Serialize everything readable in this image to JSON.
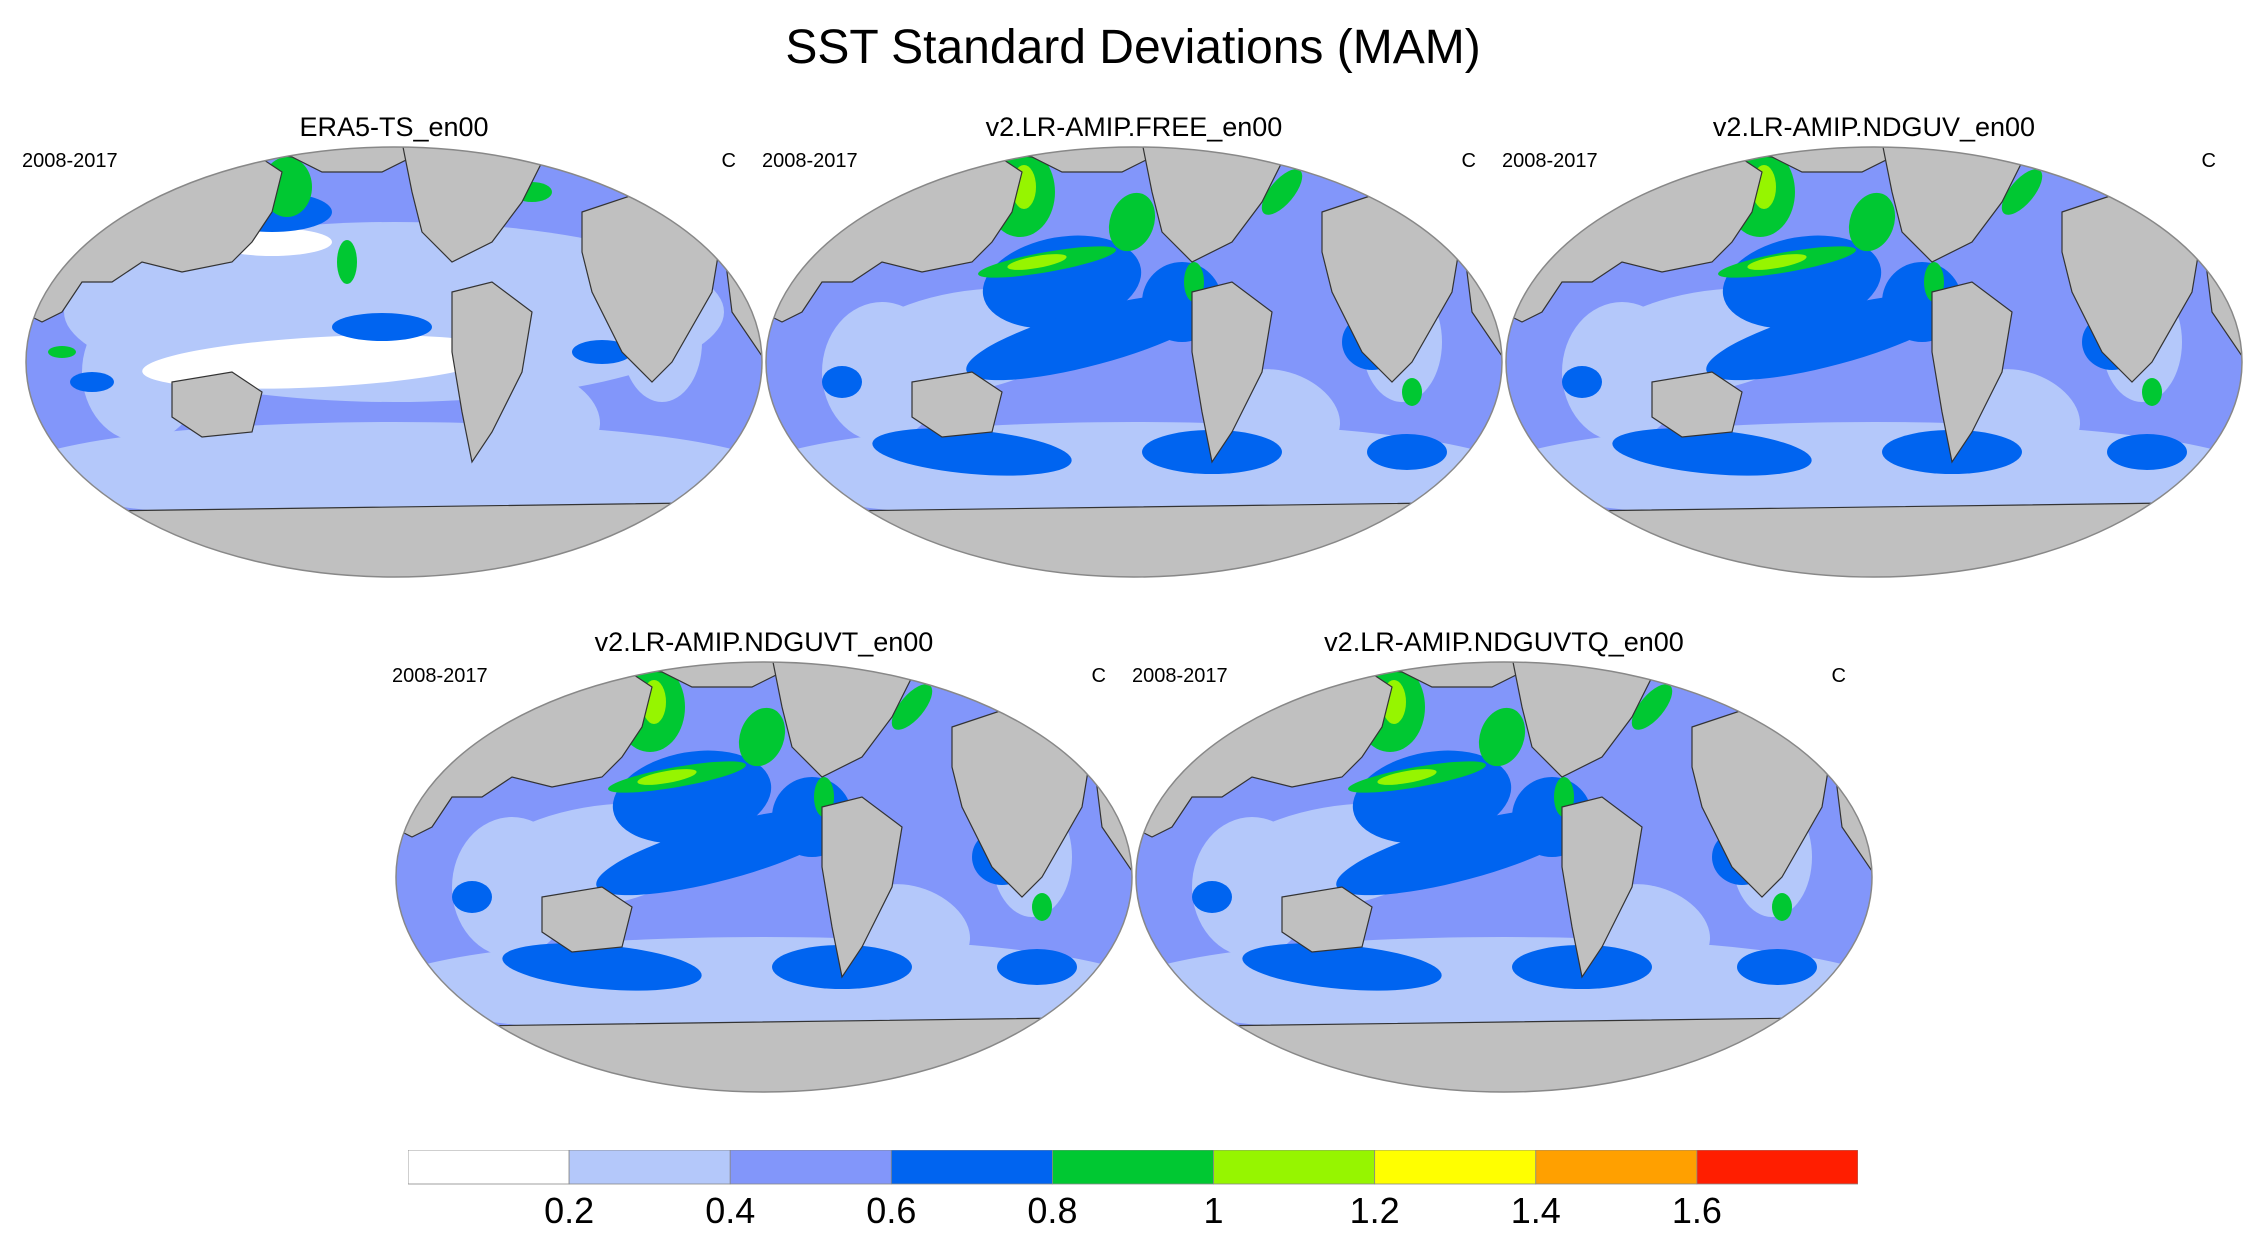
{
  "title": "SST Standard Deviations (MAM)",
  "panels": [
    {
      "title": "ERA5-TS_en00",
      "period": "2008-2017",
      "units": "C",
      "variant": "obs"
    },
    {
      "title": "v2.LR-AMIP.FREE_en00",
      "period": "2008-2017",
      "units": "C",
      "variant": "model"
    },
    {
      "title": "v2.LR-AMIP.NDGUV_en00",
      "period": "2008-2017",
      "units": "C",
      "variant": "model"
    },
    {
      "title": "v2.LR-AMIP.NDGUVT_en00",
      "period": "2008-2017",
      "units": "C",
      "variant": "model2"
    },
    {
      "title": "v2.LR-AMIP.NDGUVTQ_en00",
      "period": "2008-2017",
      "units": "C",
      "variant": "model2"
    }
  ],
  "colorbar": {
    "colors": [
      "#ffffff",
      "#b4c8fa",
      "#8296fa",
      "#0064f0",
      "#00c832",
      "#96f500",
      "#ffff00",
      "#ffa000",
      "#ff1e00"
    ],
    "labels": [
      "0.2",
      "0.4",
      "0.6",
      "0.8",
      "1",
      "1.2",
      "1.4",
      "1.6"
    ]
  },
  "map_colors": {
    "land": "#c0c0c0",
    "coast": "#333333",
    "frame": "#888888"
  }
}
